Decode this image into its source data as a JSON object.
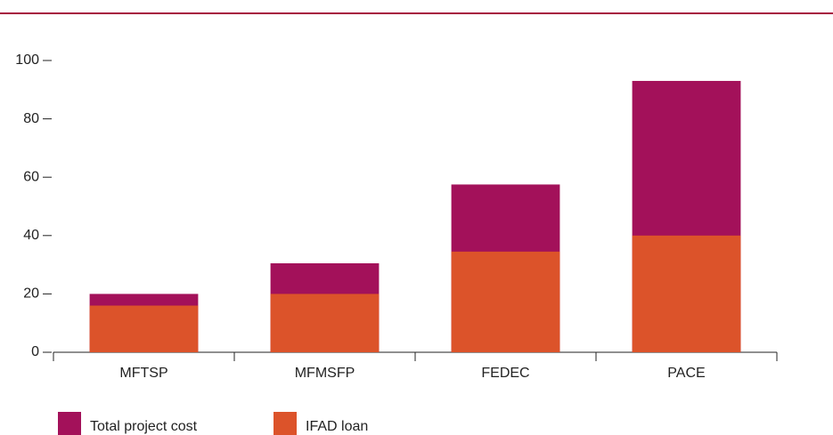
{
  "chart_data": {
    "type": "bar",
    "categories": [
      "MFTSP",
      "MFMSFP",
      "FEDEC",
      "PACE"
    ],
    "series": [
      {
        "name": "Total project cost",
        "color": "#a3115a",
        "values": [
          20,
          30.5,
          57.5,
          93
        ]
      },
      {
        "name": "IFAD loan",
        "color": "#dc532a",
        "values": [
          16,
          20,
          34.5,
          40
        ]
      }
    ],
    "ylim": [
      0,
      100
    ],
    "yticks": [
      0,
      20,
      40,
      60,
      80,
      100
    ]
  }
}
